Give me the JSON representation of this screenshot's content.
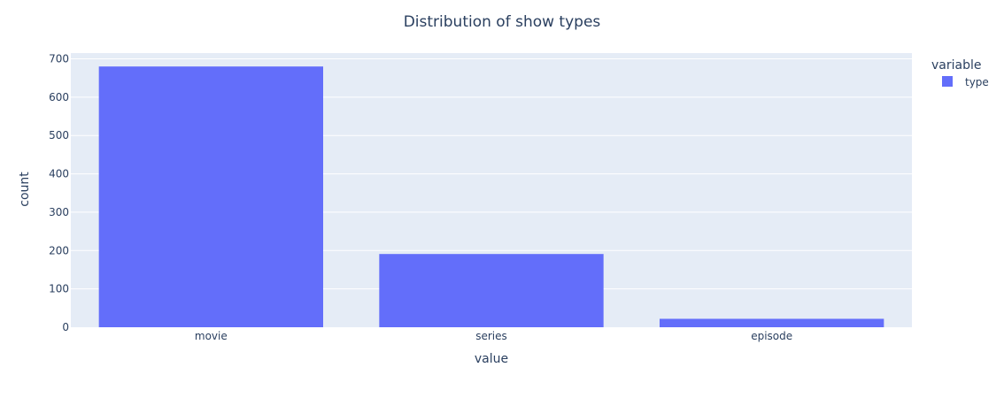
{
  "chart_data": {
    "type": "bar",
    "title": "Distribution of show types",
    "xlabel": "value",
    "ylabel": "count",
    "categories": [
      "movie",
      "series",
      "episode"
    ],
    "series": [
      {
        "name": "type",
        "values": [
          680,
          191,
          22
        ]
      }
    ],
    "ylim": [
      0,
      715
    ],
    "yticks": [
      0,
      100,
      200,
      300,
      400,
      500,
      600,
      700
    ],
    "grid": true,
    "legend": {
      "title": "variable",
      "placement": "top-right"
    },
    "colors": {
      "bar": "#636efa",
      "plot_bg": "#e5ecf6",
      "grid": "#ffffff",
      "text": "#2a3f5f"
    }
  }
}
